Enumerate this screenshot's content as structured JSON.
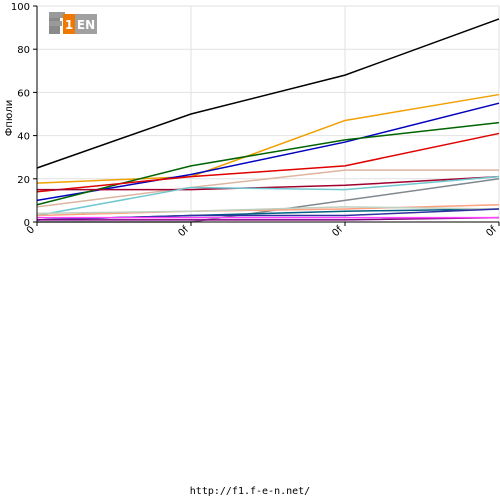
{
  "logo": {
    "text": "F1EN",
    "mark": "f1-fen-logo"
  },
  "footer": {
    "url": "http://f1.f-e-n.net/"
  },
  "chart_data": {
    "type": "line",
    "ylabel": "Фпюли",
    "xlabel": "",
    "categories": [
      "0",
      "0f",
      "0f",
      "0f"
    ],
    "ylim": [
      0,
      100
    ],
    "yticks": [
      0,
      20,
      40,
      60,
      80,
      100
    ],
    "grid": true,
    "legend": "none",
    "series": [
      {
        "color": "#000000",
        "values": [
          25,
          50,
          68,
          94
        ]
      },
      {
        "color": "#f0a000",
        "values": [
          18,
          21,
          47,
          59
        ]
      },
      {
        "color": "#0000c0",
        "values": [
          10,
          22,
          37,
          55
        ]
      },
      {
        "color": "#006400",
        "values": [
          8,
          26,
          38,
          46
        ]
      },
      {
        "color": "#e00000",
        "values": [
          14,
          21,
          26,
          41
        ]
      },
      {
        "color": "#dcb4a0",
        "values": [
          7,
          16,
          24,
          24
        ]
      },
      {
        "color": "#a00030",
        "values": [
          15,
          15,
          17,
          21
        ]
      },
      {
        "color": "#70c8d0",
        "values": [
          3,
          16,
          15,
          21
        ]
      },
      {
        "color": "#808890",
        "values": [
          0,
          0,
          10,
          20
        ]
      },
      {
        "color": "#ffa080",
        "values": [
          3,
          5,
          6,
          8
        ]
      },
      {
        "color": "#006080",
        "values": [
          1,
          3,
          5,
          6
        ]
      },
      {
        "color": "#c0d0c0",
        "values": [
          4,
          5,
          7,
          6
        ]
      },
      {
        "color": "#3030a0",
        "values": [
          1,
          3,
          3,
          6
        ]
      },
      {
        "color": "#800080",
        "values": [
          1,
          1,
          1,
          2
        ]
      },
      {
        "color": "#ff40ff",
        "values": [
          2,
          2,
          2,
          2
        ]
      }
    ]
  }
}
